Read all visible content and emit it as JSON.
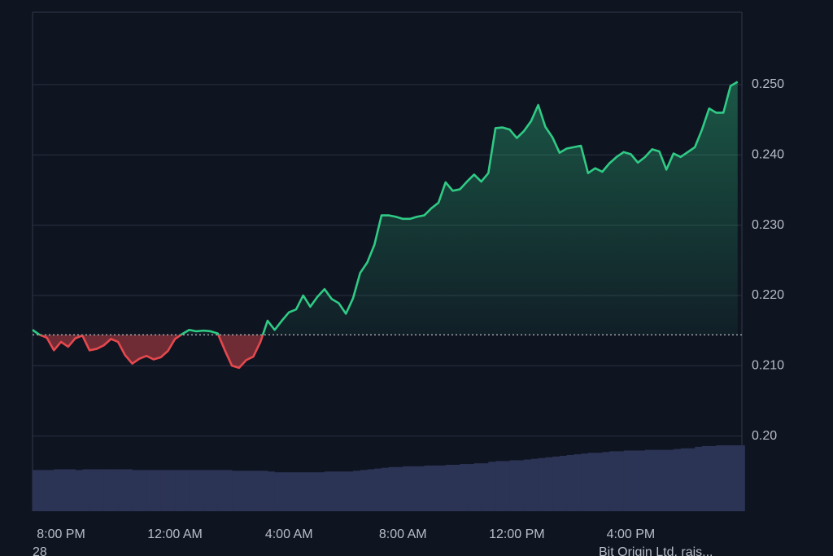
{
  "chart_data": {
    "type": "line",
    "x": [
      0,
      0.25,
      0.5,
      0.75,
      1,
      1.25,
      1.5,
      1.75,
      2,
      2.25,
      2.5,
      2.75,
      3,
      3.25,
      3.5,
      3.75,
      4,
      4.25,
      4.5,
      4.75,
      5,
      5.25,
      5.5,
      5.75,
      6,
      6.25,
      6.5,
      6.75,
      7,
      7.25,
      7.5,
      7.75,
      8,
      8.25,
      8.5,
      8.75,
      9,
      9.25,
      9.5,
      9.75,
      10,
      10.25,
      10.5,
      10.75,
      11,
      11.25,
      11.5,
      11.75,
      12,
      12.25,
      12.5,
      12.75,
      13,
      13.25,
      13.5,
      13.75,
      14,
      14.25,
      14.5,
      14.75,
      15,
      15.25,
      15.5,
      15.75,
      16,
      16.25,
      16.5,
      16.75,
      17,
      17.25,
      17.5,
      17.75,
      18,
      18.25,
      18.5,
      18.75,
      19,
      19.25,
      19.5,
      19.75,
      20,
      20.25,
      20.5,
      20.75,
      21,
      21.25,
      21.5,
      21.75,
      22,
      22.25,
      22.5,
      22.75,
      23,
      23.25,
      23.5,
      23.75,
      24,
      24.25,
      24.5,
      24.75
    ],
    "values": [
      0.2151,
      0.2144,
      0.214,
      0.2122,
      0.2134,
      0.2127,
      0.2139,
      0.2143,
      0.2122,
      0.2124,
      0.2129,
      0.2138,
      0.2134,
      0.2115,
      0.2103,
      0.211,
      0.2114,
      0.2109,
      0.2112,
      0.2121,
      0.2138,
      0.2145,
      0.2151,
      0.2149,
      0.215,
      0.2149,
      0.2146,
      0.2122,
      0.21,
      0.2097,
      0.2108,
      0.2113,
      0.2134,
      0.2164,
      0.2151,
      0.2164,
      0.2176,
      0.218,
      0.22,
      0.2184,
      0.2198,
      0.2209,
      0.2195,
      0.2189,
      0.2174,
      0.2196,
      0.2232,
      0.2247,
      0.2272,
      0.2314,
      0.2314,
      0.2312,
      0.2309,
      0.2309,
      0.2312,
      0.2314,
      0.2324,
      0.2332,
      0.2361,
      0.2349,
      0.2351,
      0.2362,
      0.2372,
      0.2362,
      0.2374,
      0.2438,
      0.2439,
      0.2436,
      0.2424,
      0.2434,
      0.2448,
      0.2471,
      0.244,
      0.2425,
      0.2403,
      0.2409,
      0.2411,
      0.2413,
      0.2374,
      0.2381,
      0.2376,
      0.2388,
      0.2397,
      0.2404,
      0.2401,
      0.2389,
      0.2397,
      0.2408,
      0.2405,
      0.2379,
      0.2402,
      0.2397,
      0.2404,
      0.2411,
      0.2436,
      0.2466,
      0.246,
      0.246,
      0.2498,
      0.2504
    ],
    "volume": [
      55,
      55,
      55,
      56,
      56,
      56,
      55,
      56,
      56,
      56,
      56,
      56,
      56,
      56,
      55,
      55,
      55,
      55,
      55,
      55,
      55,
      55,
      55,
      55,
      55,
      55,
      55,
      55,
      54,
      54,
      54,
      54,
      54,
      53,
      52,
      52,
      52,
      52,
      52,
      52,
      52,
      53,
      53,
      53,
      53,
      54,
      55,
      56,
      57,
      58,
      59,
      59,
      60,
      60,
      60,
      61,
      61,
      61,
      62,
      62,
      63,
      63,
      64,
      64,
      66,
      67,
      67,
      68,
      68,
      69,
      70,
      71,
      72,
      73,
      74,
      75,
      76,
      77,
      78,
      78,
      79,
      80,
      80,
      81,
      81,
      81,
      82,
      82,
      82,
      82,
      83,
      84,
      84,
      86,
      87,
      87,
      88,
      88,
      88,
      88
    ],
    "baseline": 0.2144,
    "up_color": "#2fcb85",
    "down_color": "#e5484d",
    "volume_color": "#2c3456",
    "xlim": [
      0,
      24.9
    ],
    "ylim": [
      0.1893,
      0.2603
    ],
    "y2lim": [
      0,
      100
    ],
    "xticks": [
      {
        "value": 1,
        "label": "8:00 PM"
      },
      {
        "value": 5,
        "label": "12:00 AM"
      },
      {
        "value": 9,
        "label": "4:00 AM"
      },
      {
        "value": 13,
        "label": "8:00 AM"
      },
      {
        "value": 17,
        "label": "12:00 PM"
      },
      {
        "value": 21,
        "label": "4:00 PM"
      }
    ],
    "yticks": [
      {
        "value": 0.2,
        "label": "0.20"
      },
      {
        "value": 0.21,
        "label": "0.210"
      },
      {
        "value": 0.22,
        "label": "0.220"
      },
      {
        "value": 0.23,
        "label": "0.230"
      },
      {
        "value": 0.24,
        "label": "0.240"
      },
      {
        "value": 0.25,
        "label": "0.250"
      }
    ],
    "grid": true
  },
  "footer": {
    "left": "28",
    "right": "Bit Origin Ltd. rais..."
  }
}
